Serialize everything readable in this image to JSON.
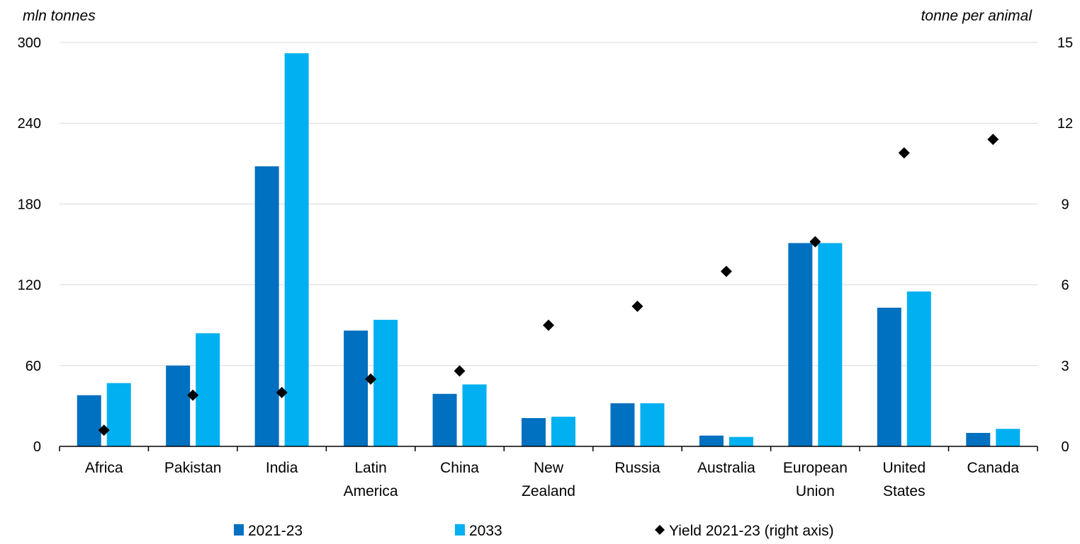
{
  "chart_data": {
    "type": "bar",
    "title": "",
    "y_left_label": "mln tonnes",
    "y_right_label": "tonne per animal",
    "ylim_left": [
      0,
      300
    ],
    "ylim_right": [
      0,
      15
    ],
    "yticks_left": [
      0,
      60,
      120,
      180,
      240,
      300
    ],
    "yticks_right": [
      0,
      3,
      6,
      9,
      12,
      15
    ],
    "grid": true,
    "legend_position": "bottom",
    "categories": [
      [
        "Africa"
      ],
      [
        "Pakistan"
      ],
      [
        "India"
      ],
      [
        "Latin",
        "America"
      ],
      [
        "China"
      ],
      [
        "New",
        "Zealand"
      ],
      [
        "Russia"
      ],
      [
        "Australia"
      ],
      [
        "European",
        "Union"
      ],
      [
        "United",
        "States"
      ],
      [
        "Canada"
      ]
    ],
    "series": [
      {
        "name": "2021-23",
        "type": "bar",
        "axis": "left",
        "color": "#0070c0",
        "values": [
          38,
          60,
          208,
          86,
          39,
          21,
          32,
          8,
          151,
          103,
          10
        ]
      },
      {
        "name": "2033",
        "type": "bar",
        "axis": "left",
        "color": "#00b0f0",
        "values": [
          47,
          84,
          292,
          94,
          46,
          22,
          32,
          7,
          151,
          115,
          13
        ]
      },
      {
        "name": "Yield 2021-23 (right axis)",
        "type": "scatter",
        "axis": "right",
        "color": "#000000",
        "marker": "diamond",
        "values": [
          0.6,
          1.9,
          2.0,
          2.5,
          2.8,
          4.5,
          5.2,
          6.5,
          7.6,
          10.9,
          11.4
        ]
      }
    ]
  }
}
